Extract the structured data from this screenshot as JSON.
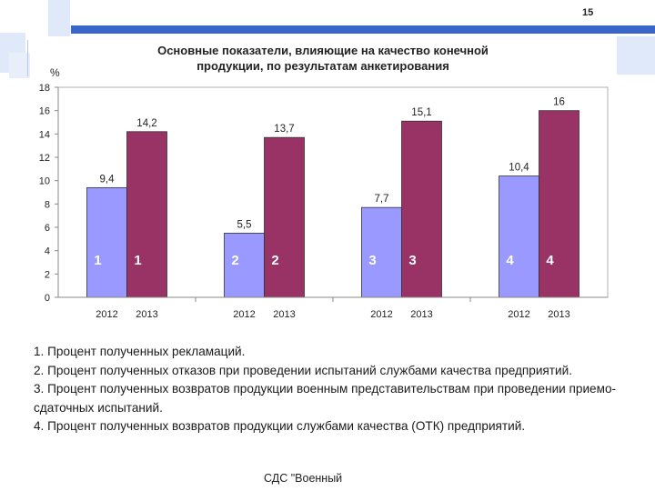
{
  "slide": {
    "number": "15",
    "footer": "СДС \"Военный"
  },
  "colors": {
    "accent_blue": "#3a66cc",
    "light_blue": "#dfe9fa",
    "series_2012": "#9999ff",
    "series_2013": "#993366"
  },
  "notes": [
    "1. Процент полученных рекламаций.",
    "2. Процент полученных отказов при проведении испытаний службами качества предприятий.",
    "3. Процент полученных возвратов продукции военным представительствам при проведении приемо-сдаточных испытаний.",
    "4. Процент полученных возвратов продукции службами качества (ОТК) предприятий."
  ],
  "chart_data": {
    "type": "bar",
    "title": "Основные показатели, влияющие на качество конечной продукции, по результатам анкетирования",
    "title_lines": [
      "Основные показатели, влияющие на качество конечной",
      "продукции, по результатам анкетирования"
    ],
    "ylabel": "%",
    "ylim": [
      0,
      18
    ],
    "yticks": [
      "0",
      "2",
      "4",
      "6",
      "8",
      "10",
      "12",
      "14",
      "16",
      "18"
    ],
    "grid": false,
    "legend": "none",
    "groups": [
      "1",
      "2",
      "3",
      "4"
    ],
    "x_labels": [
      "2012",
      "2013"
    ],
    "series": [
      {
        "values": [
          9.4,
          5.5,
          7.7,
          10.4
        ],
        "labels": [
          "9,4",
          "5,5",
          "7,7",
          "10,4"
        ]
      },
      {
        "values": [
          14.2,
          13.7,
          15.1,
          16
        ],
        "labels": [
          "14,2",
          "13,7",
          "15,1",
          "16"
        ]
      }
    ]
  }
}
